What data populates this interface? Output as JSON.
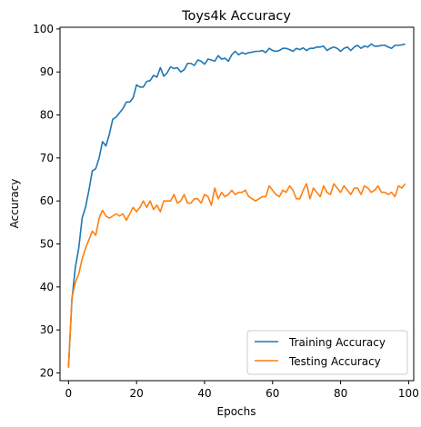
{
  "chart_data": {
    "type": "line",
    "title": "Toys4k Accuracy",
    "xlabel": "Epochs",
    "ylabel": "Accuracy",
    "xlim": [
      -2.5,
      101.5
    ],
    "ylim": [
      18.2,
      100.4
    ],
    "xticks": [
      0,
      20,
      40,
      60,
      80,
      100
    ],
    "yticks": [
      20,
      30,
      40,
      50,
      60,
      70,
      80,
      90,
      100
    ],
    "grid": false,
    "legend_position": "lower-right",
    "series": [
      {
        "name": "Training Accuracy",
        "color": "#1f77b4",
        "values": [
          21.5,
          37.0,
          44.5,
          49.0,
          56.0,
          58.5,
          62.5,
          67.0,
          67.5,
          70.0,
          73.8,
          72.8,
          75.5,
          79.0,
          79.5,
          80.5,
          81.5,
          83.0,
          83.0,
          84.0,
          87.0,
          86.5,
          86.5,
          87.8,
          88.0,
          89.2,
          88.8,
          91.0,
          89.0,
          89.8,
          91.2,
          90.8,
          91.0,
          90.0,
          90.5,
          92.0,
          92.0,
          91.5,
          92.8,
          92.5,
          91.8,
          93.0,
          92.8,
          92.5,
          93.8,
          93.0,
          93.2,
          92.5,
          94.0,
          94.8,
          94.0,
          94.5,
          94.2,
          94.5,
          94.6,
          94.8,
          94.8,
          95.0,
          94.5,
          95.5,
          95.0,
          94.8,
          95.0,
          95.5,
          95.5,
          95.2,
          94.8,
          95.5,
          95.2,
          95.6,
          95.0,
          95.5,
          95.5,
          95.8,
          95.8,
          96.0,
          95.0,
          95.5,
          95.8,
          95.5,
          94.8,
          95.5,
          95.8,
          95.0,
          95.8,
          96.2,
          95.5,
          96.0,
          95.8,
          96.5,
          96.0,
          96.0,
          96.2,
          96.2,
          95.8,
          95.5,
          96.2,
          96.2,
          96.3,
          96.5
        ]
      },
      {
        "name": "Testing Accuracy",
        "color": "#ff7f0e",
        "values": [
          21.2,
          37.5,
          41.0,
          43.0,
          46.5,
          49.0,
          51.0,
          53.0,
          52.0,
          56.0,
          57.8,
          56.5,
          56.0,
          56.5,
          57.0,
          56.5,
          57.0,
          55.5,
          57.0,
          58.5,
          57.5,
          58.5,
          60.0,
          58.5,
          60.0,
          58.0,
          59.0,
          57.5,
          60.0,
          60.0,
          60.0,
          61.5,
          59.5,
          60.0,
          61.5,
          59.5,
          59.5,
          60.5,
          60.5,
          59.5,
          61.5,
          61.0,
          59.0,
          63.0,
          60.5,
          62.0,
          61.0,
          61.5,
          62.5,
          61.5,
          62.0,
          62.0,
          62.5,
          61.0,
          60.5,
          60.0,
          60.5,
          61.0,
          61.0,
          63.5,
          62.5,
          61.5,
          61.0,
          62.5,
          62.0,
          63.5,
          62.5,
          60.5,
          60.5,
          62.5,
          64.0,
          60.5,
          63.0,
          62.0,
          61.0,
          63.5,
          62.0,
          61.5,
          64.0,
          63.0,
          62.0,
          63.5,
          62.5,
          61.5,
          63.0,
          63.0,
          61.5,
          63.5,
          63.0,
          62.0,
          62.5,
          63.5,
          62.0,
          62.0,
          61.5,
          62.0,
          61.0,
          63.5,
          63.0,
          64.0
        ]
      }
    ]
  }
}
